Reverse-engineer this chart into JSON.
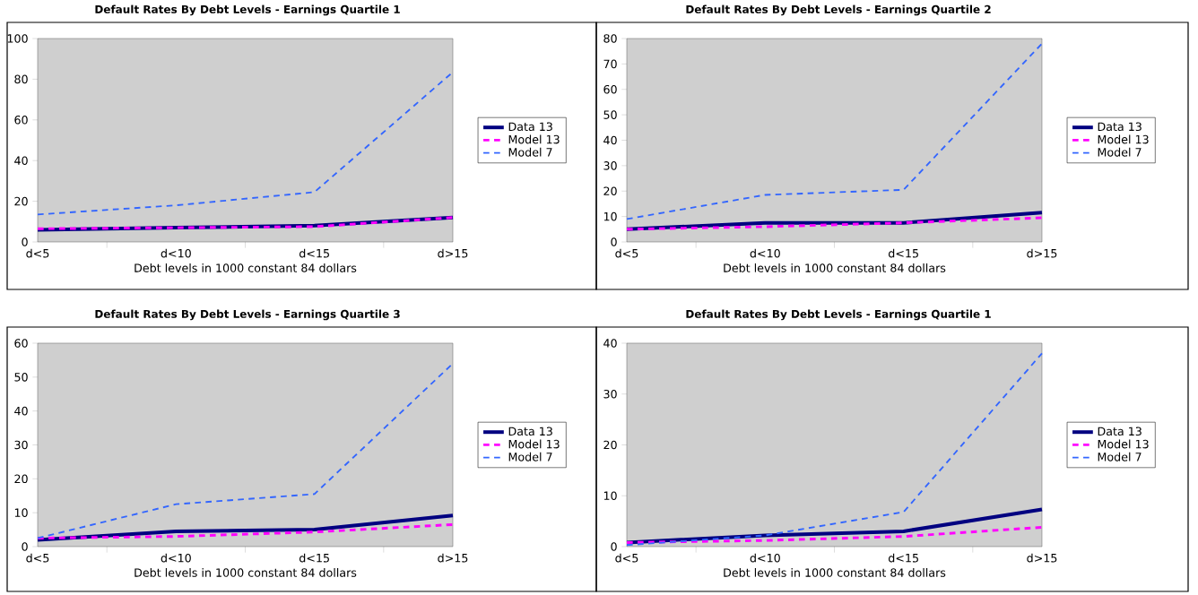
{
  "chart_data": [
    {
      "type": "line",
      "title": "Default Rates By Debt Levels - Earnings Quartile 1",
      "xlabel": "Debt levels in 1000 constant 84 dollars",
      "categories": [
        "d<5",
        "d<10",
        "d<15",
        "d>15"
      ],
      "ylim": [
        0,
        100
      ],
      "yticks": [
        0,
        20,
        40,
        60,
        80,
        100
      ],
      "legend": "right",
      "series": [
        {
          "name": "Data 13",
          "color": "#000080",
          "line_style": "solid",
          "values": [
            6,
            7,
            8,
            12
          ]
        },
        {
          "name": "Model 13",
          "color": "#ff00ff",
          "line_style": "dashed",
          "values": [
            6.5,
            7,
            7.5,
            12
          ]
        },
        {
          "name": "Model 7",
          "color": "#3366ff",
          "line_style": "dashed",
          "values": [
            13.5,
            18,
            24.5,
            83.5
          ]
        }
      ]
    },
    {
      "type": "line",
      "title": "Default Rates By Debt Levels - Earnings Quartile 2",
      "xlabel": "Debt levels in 1000 constant 84 dollars",
      "categories": [
        "d<5",
        "d<10",
        "d<15",
        "d>15"
      ],
      "ylim": [
        0,
        80
      ],
      "yticks": [
        0,
        10,
        20,
        30,
        40,
        50,
        60,
        70,
        80
      ],
      "legend": "right",
      "series": [
        {
          "name": "Data 13",
          "color": "#000080",
          "line_style": "solid",
          "values": [
            5,
            7.5,
            7.5,
            11.5
          ]
        },
        {
          "name": "Model 13",
          "color": "#ff00ff",
          "line_style": "dashed",
          "values": [
            5,
            6,
            7.5,
            9.5
          ]
        },
        {
          "name": "Model 7",
          "color": "#3366ff",
          "line_style": "dashed",
          "values": [
            9,
            18.5,
            20.5,
            78
          ]
        }
      ]
    },
    {
      "type": "line",
      "title": "Default Rates By Debt Levels - Earnings Quartile 3",
      "xlabel": "Debt levels in 1000 constant 84 dollars",
      "categories": [
        "d<5",
        "d<10",
        "d<15",
        "d>15"
      ],
      "ylim": [
        0,
        60
      ],
      "yticks": [
        0,
        10,
        20,
        30,
        40,
        50,
        60
      ],
      "legend": "right",
      "series": [
        {
          "name": "Data 13",
          "color": "#000080",
          "line_style": "solid",
          "values": [
            2,
            4.5,
            5,
            9.2
          ]
        },
        {
          "name": "Model 13",
          "color": "#ff00ff",
          "line_style": "dashed",
          "values": [
            2.5,
            3,
            4.3,
            6.5
          ]
        },
        {
          "name": "Model 7",
          "color": "#3366ff",
          "line_style": "dashed",
          "values": [
            2.5,
            12.5,
            15.5,
            54
          ]
        }
      ]
    },
    {
      "type": "line",
      "title": "Default Rates By Debt Levels - Earnings Quartile 1",
      "xlabel": "Debt levels in 1000 constant 84 dollars",
      "categories": [
        "d<5",
        "d<10",
        "d<15",
        "d>15"
      ],
      "ylim": [
        0,
        40
      ],
      "yticks": [
        0,
        10,
        20,
        30,
        40
      ],
      "legend": "right",
      "series": [
        {
          "name": "Data 13",
          "color": "#000080",
          "line_style": "solid",
          "values": [
            0.8,
            2.2,
            3,
            7.3
          ]
        },
        {
          "name": "Model 13",
          "color": "#ff00ff",
          "line_style": "dashed",
          "values": [
            0.8,
            1.2,
            2,
            3.8
          ]
        },
        {
          "name": "Model 7",
          "color": "#3366ff",
          "line_style": "dashed",
          "values": [
            0.3,
            2.2,
            6.8,
            38
          ]
        }
      ]
    }
  ]
}
